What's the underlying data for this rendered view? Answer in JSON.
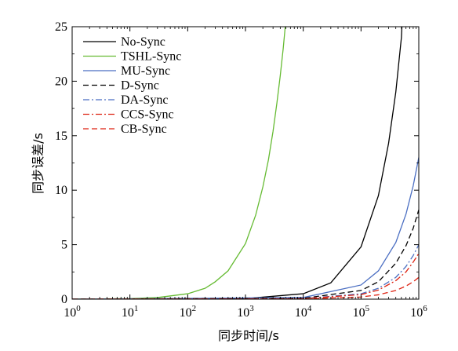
{
  "chart_data": {
    "type": "line",
    "xlabel": "同步时间/s",
    "ylabel": "同步误差/s",
    "x_scale": "log",
    "xlim": [
      1,
      1000000
    ],
    "ylim": [
      0,
      25
    ],
    "x_ticks": [
      {
        "base": "10",
        "exp": "0",
        "value": 1
      },
      {
        "base": "10",
        "exp": "1",
        "value": 10
      },
      {
        "base": "10",
        "exp": "2",
        "value": 100
      },
      {
        "base": "10",
        "exp": "3",
        "value": 1000
      },
      {
        "base": "10",
        "exp": "4",
        "value": 10000
      },
      {
        "base": "10",
        "exp": "5",
        "value": 100000
      },
      {
        "base": "10",
        "exp": "6",
        "value": 1000000
      }
    ],
    "y_ticks": [
      "0",
      "5",
      "10",
      "15",
      "20",
      "25"
    ],
    "grid": false,
    "legend_position": "top-left",
    "series": [
      {
        "name": "No-Sync",
        "color": "#000000",
        "dash": "solid",
        "points": [
          [
            1,
            0
          ],
          [
            1000,
            0.05
          ],
          [
            10000,
            0.5
          ],
          [
            30000,
            1.5
          ],
          [
            100000,
            4.8
          ],
          [
            200000,
            9.5
          ],
          [
            300000,
            14.3
          ],
          [
            400000,
            19.0
          ],
          [
            500000,
            24.0
          ],
          [
            510000,
            25
          ]
        ]
      },
      {
        "name": "TSHL-Sync",
        "color": "#66bb33",
        "dash": "solid",
        "points": [
          [
            1,
            0
          ],
          [
            10,
            0.05
          ],
          [
            30,
            0.15
          ],
          [
            100,
            0.5
          ],
          [
            200,
            1.0
          ],
          [
            300,
            1.6
          ],
          [
            500,
            2.6
          ],
          [
            1000,
            5.1
          ],
          [
            1500,
            7.7
          ],
          [
            2000,
            10.3
          ],
          [
            2500,
            12.8
          ],
          [
            3000,
            15.4
          ],
          [
            3500,
            18.0
          ],
          [
            4000,
            20.5
          ],
          [
            4500,
            23.0
          ],
          [
            4880,
            25
          ]
        ]
      },
      {
        "name": "MU-Sync",
        "color": "#4a6ec2",
        "dash": "solid",
        "points": [
          [
            1,
            0
          ],
          [
            10000,
            0.15
          ],
          [
            100000,
            1.3
          ],
          [
            200000,
            2.6
          ],
          [
            400000,
            5.2
          ],
          [
            600000,
            7.8
          ],
          [
            800000,
            10.4
          ],
          [
            1000000,
            13.0
          ]
        ]
      },
      {
        "name": "D-Sync",
        "color": "#000000",
        "dash": "7,4",
        "points": [
          [
            1,
            0
          ],
          [
            10000,
            0.08
          ],
          [
            100000,
            0.8
          ],
          [
            200000,
            1.6
          ],
          [
            400000,
            3.3
          ],
          [
            600000,
            4.9
          ],
          [
            800000,
            6.5
          ],
          [
            1000000,
            8.2
          ]
        ]
      },
      {
        "name": "DA-Sync",
        "color": "#4a6ec2",
        "dash": "8,3,2,3",
        "points": [
          [
            1,
            0
          ],
          [
            10000,
            0.05
          ],
          [
            100000,
            0.5
          ],
          [
            200000,
            1.0
          ],
          [
            400000,
            2.0
          ],
          [
            600000,
            3.0
          ],
          [
            800000,
            4.0
          ],
          [
            1000000,
            5.0
          ]
        ]
      },
      {
        "name": "CCS-Sync",
        "color": "#dd2211",
        "dash": "8,3,2,3",
        "points": [
          [
            1,
            0
          ],
          [
            10000,
            0.04
          ],
          [
            100000,
            0.42
          ],
          [
            200000,
            0.84
          ],
          [
            400000,
            1.7
          ],
          [
            600000,
            2.5
          ],
          [
            800000,
            3.4
          ],
          [
            1000000,
            4.2
          ]
        ]
      },
      {
        "name": "CB-Sync",
        "color": "#dd2211",
        "dash": "7,4",
        "points": [
          [
            1,
            0
          ],
          [
            10000,
            0.02
          ],
          [
            100000,
            0.2
          ],
          [
            200000,
            0.4
          ],
          [
            400000,
            0.8
          ],
          [
            600000,
            1.2
          ],
          [
            800000,
            1.6
          ],
          [
            1000000,
            2.0
          ]
        ]
      }
    ]
  }
}
